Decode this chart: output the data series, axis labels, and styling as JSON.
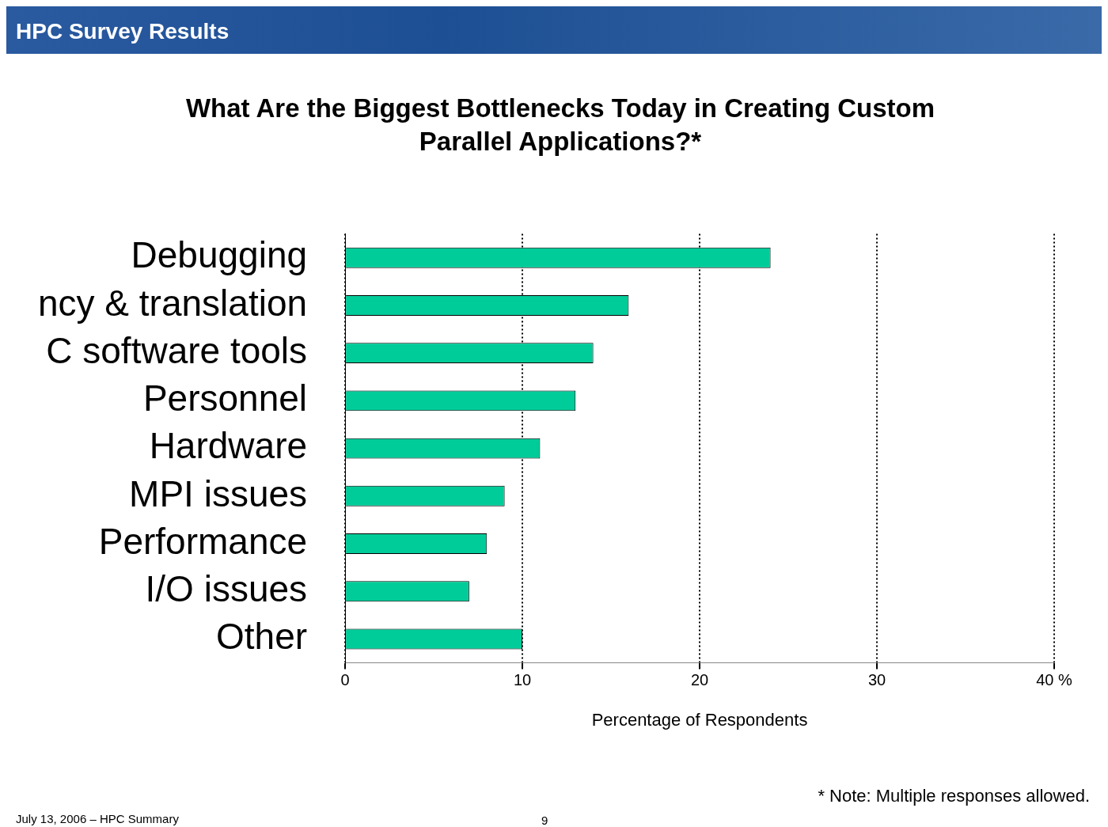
{
  "chart_data": {
    "type": "bar",
    "orientation": "horizontal",
    "title": "What Are the Biggest Bottlenecks Today in Creating Custom Parallel Applications?*",
    "xlabel": "Percentage of Respondents",
    "categories": [
      "Debugging",
      "ncy & translation",
      "C software tools",
      "Personnel",
      "Hardware",
      "MPI issues",
      "Performance",
      "I/O issues",
      "Other"
    ],
    "values": [
      24,
      16,
      14,
      13,
      11,
      9,
      8,
      7,
      10
    ],
    "color": "#00cc99",
    "xlim": [
      0,
      40
    ],
    "xticks": [
      0,
      10,
      20,
      30,
      {
        "value": 40,
        "label": "40 %"
      }
    ],
    "grid": "x",
    "line_style": "dotted",
    "legend": false,
    "annotations": [
      "HPC Survey Results",
      "* Note: Multiple responses allowed.",
      "July 13, 2006 – HPC Summary",
      "9"
    ]
  }
}
